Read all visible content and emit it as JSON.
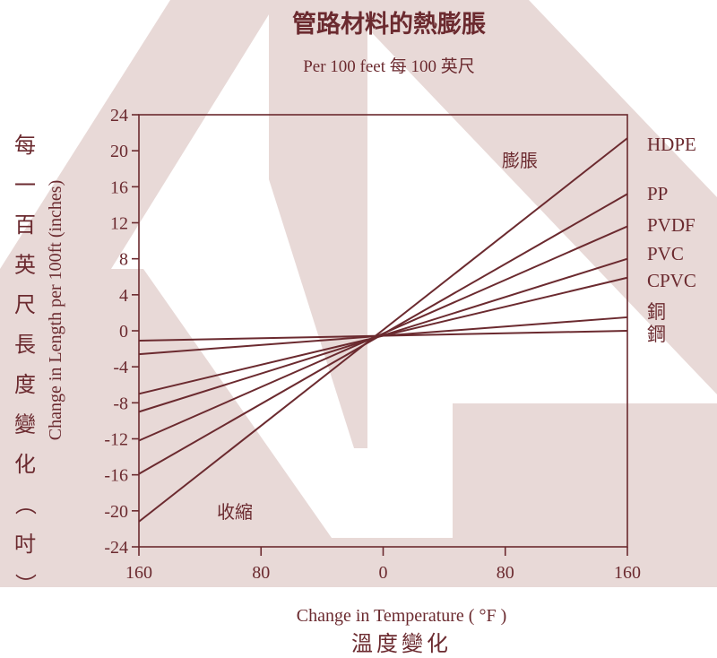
{
  "colors": {
    "line": "#6b2a2f",
    "watermark": "#e8d9d7",
    "title": "#6b2a2f"
  },
  "chart_data": {
    "type": "line",
    "title": "管路材料的熱膨脹",
    "subtitle": "Per 100 feet 每 100 英尺",
    "xlabel": "Change in Temperature ( °F )",
    "xlabel_zh": "溫度變化",
    "ylabel": "Change in Length per 100ft (inches)",
    "ylabel_zh": "每一百英尺長度變化（吋）",
    "xticks": [
      "160",
      "80",
      "0",
      "80",
      "160"
    ],
    "xtick_values": [
      -160,
      -80,
      0,
      80,
      160
    ],
    "xlim": [
      -160,
      160
    ],
    "yticks": [
      "24",
      "20",
      "16",
      "12",
      "8",
      "4",
      "0",
      "-4",
      "-8",
      "-12",
      "-16",
      "-20",
      "-24"
    ],
    "ylim": [
      -24,
      24
    ],
    "annotations": {
      "expansion": "膨脹",
      "contraction": "收縮"
    },
    "series": [
      {
        "name": "HDPE",
        "x": [
          -160,
          160
        ],
        "y": [
          -21.2,
          21.4
        ]
      },
      {
        "name": "PP",
        "x": [
          -160,
          160
        ],
        "y": [
          -15.9,
          15.2
        ]
      },
      {
        "name": "PVDF",
        "x": [
          -160,
          160
        ],
        "y": [
          -12.2,
          11.6
        ]
      },
      {
        "name": "PVC",
        "x": [
          -160,
          160
        ],
        "y": [
          -9.0,
          8.0
        ]
      },
      {
        "name": "CPVC",
        "x": [
          -160,
          160
        ],
        "y": [
          -7.0,
          5.9
        ]
      },
      {
        "name": "銅",
        "x": [
          -160,
          160
        ],
        "y": [
          -2.6,
          1.5
        ]
      },
      {
        "name": "鋼",
        "x": [
          -160,
          160
        ],
        "y": [
          -1.1,
          0.0
        ]
      }
    ]
  }
}
